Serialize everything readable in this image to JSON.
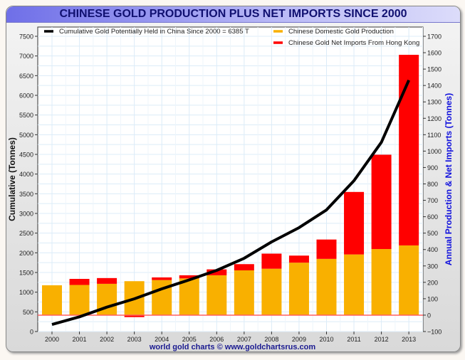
{
  "chart_data": {
    "type": "bar",
    "title": "CHINESE GOLD PRODUCTION PLUS NET IMPORTS SINCE 2000",
    "footer": "world gold charts © www.goldchartsrus.com",
    "categories": [
      "2000",
      "2001",
      "2002",
      "2003",
      "2004",
      "2005",
      "2006",
      "2007",
      "2008",
      "2009",
      "2010",
      "2011",
      "2012",
      "2013"
    ],
    "ylabel_left": "Cumulative (Tonnes)",
    "ylabel_right": "Annual Production & Net Imports (Tonnes)",
    "ylim_left": [
      0,
      7500
    ],
    "ylim_right": [
      -100,
      1700
    ],
    "left_ticks": [
      0,
      500,
      1000,
      1500,
      2000,
      2500,
      3000,
      3500,
      4000,
      4500,
      5000,
      5500,
      6000,
      6500,
      7000,
      7500
    ],
    "right_ticks": [
      -100,
      0,
      100,
      200,
      300,
      400,
      500,
      600,
      700,
      800,
      900,
      1000,
      1100,
      1200,
      1300,
      1400,
      1500,
      1600,
      1700
    ],
    "grid": true,
    "legend_position": "top",
    "series": [
      {
        "name": "Chinese Domestic Gold Production",
        "type": "stacked-bar",
        "axis": "right",
        "color": "#f9b000",
        "values": [
          182,
          184,
          191,
          207,
          214,
          224,
          243,
          273,
          283,
          320,
          343,
          370,
          403,
          425
        ]
      },
      {
        "name": "Chinese Gold Net Imports From Hong Kong",
        "type": "stacked-bar",
        "axis": "right",
        "color": "#ff0000",
        "values": [
          0,
          37,
          35,
          -12,
          16,
          19,
          36,
          38,
          92,
          43,
          118,
          381,
          575,
          1162
        ]
      },
      {
        "name": "Cumulative Gold Potentially Held in China Since 2000 = 6385 T",
        "type": "line",
        "axis": "left",
        "color": "#000000",
        "values": [
          180,
          374,
          620,
          831,
          1084,
          1313,
          1554,
          1861,
          2277,
          2639,
          3090,
          3831,
          4808,
          6385
        ]
      }
    ]
  }
}
